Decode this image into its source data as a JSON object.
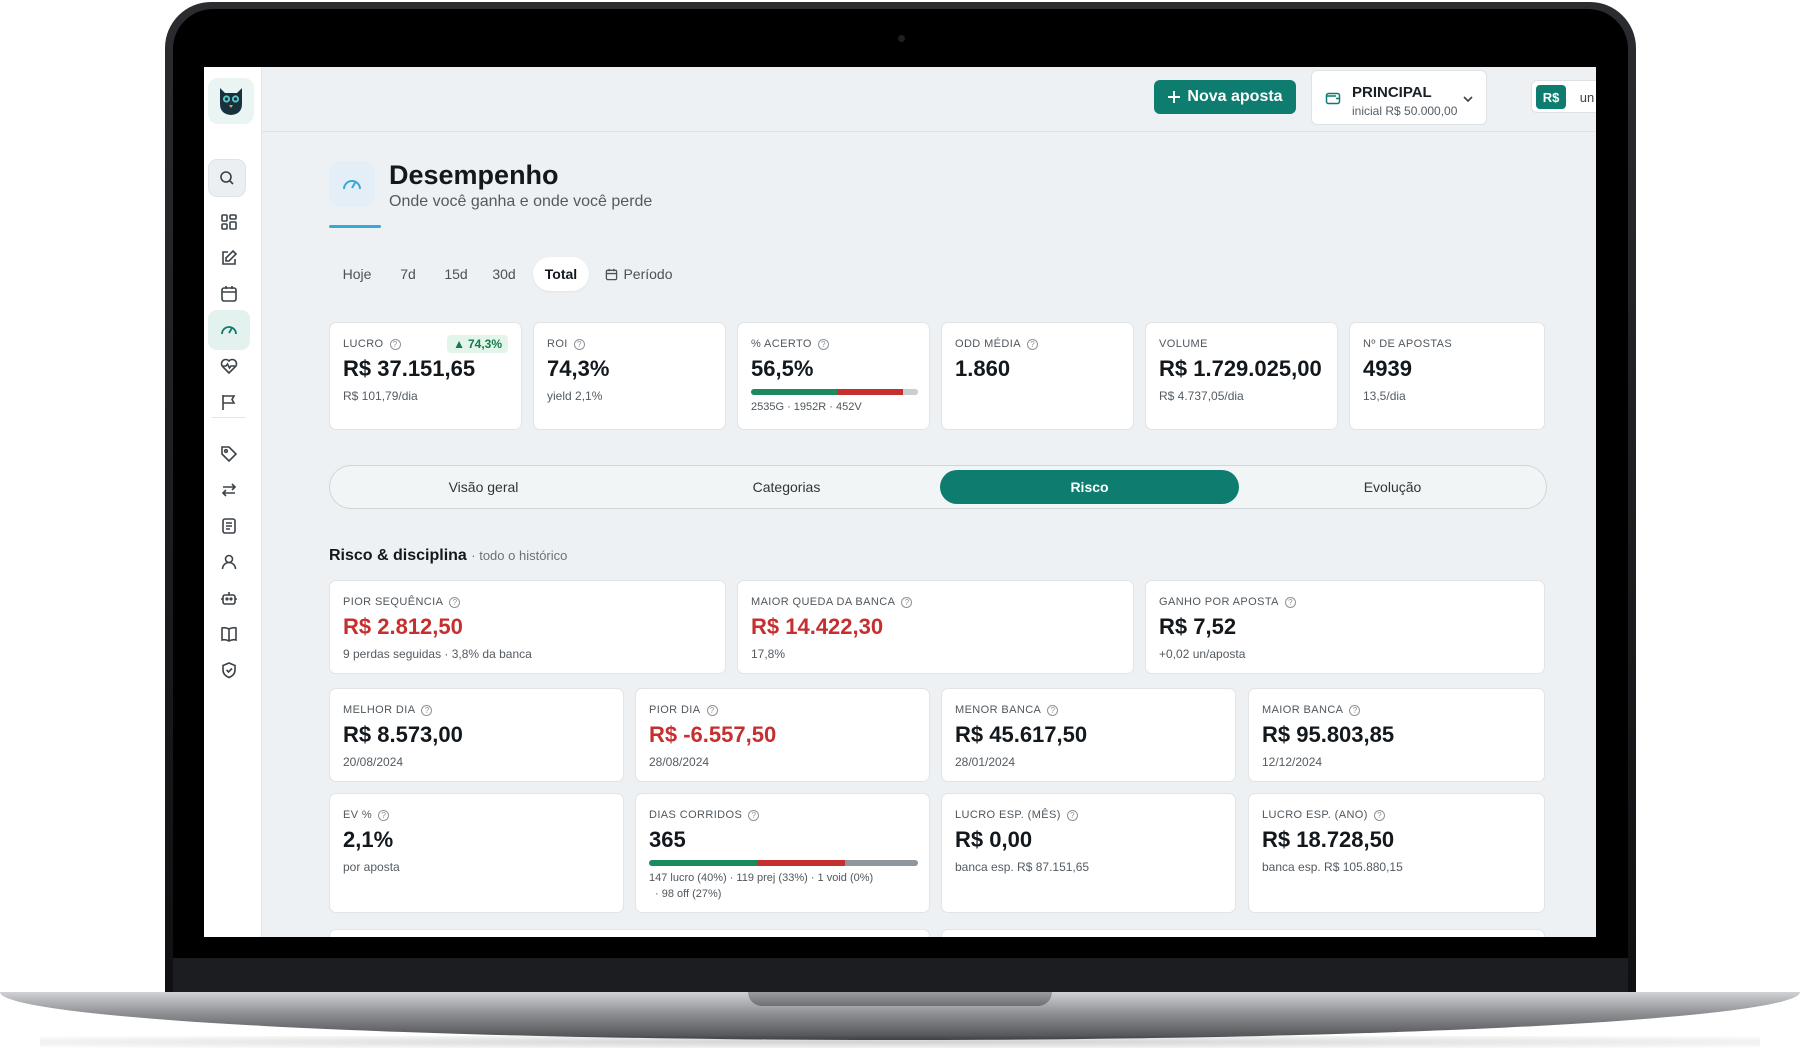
{
  "header": {
    "new_bet_label": "Nova aposta",
    "bank": {
      "name": "PRINCIPAL",
      "sub": "inicial R$ 50.000,00"
    },
    "currency": {
      "rs": "R$",
      "un": "un"
    }
  },
  "page": {
    "title": "Desempenho",
    "subtitle": "Onde você ganha e onde você perde"
  },
  "periods": [
    "Hoje",
    "7d",
    "15d",
    "30d",
    "Total",
    "Período"
  ],
  "kpis": {
    "lucro": {
      "label": "LUCRO",
      "value": "R$ 37.151,65",
      "sub": "R$ 101,79/dia",
      "badge": "74,3%"
    },
    "roi": {
      "label": "ROI",
      "value": "74,3%",
      "sub": "yield 2,1%"
    },
    "acerto": {
      "label": "% ACERTO",
      "value": "56,5%",
      "sub": "2535G · 1952R · 452V",
      "green_pct": 51.3,
      "red_pct": 39.5,
      "void_pct": 9.2
    },
    "odd": {
      "label": "ODD MÉDIA",
      "value": "1.860"
    },
    "volume": {
      "label": "VOLUME",
      "value": "R$ 1.729.025,00",
      "sub": "R$ 4.737,05/dia"
    },
    "apostas": {
      "label": "Nº DE APOSTAS",
      "value": "4939",
      "sub": "13,5/dia"
    }
  },
  "tabs": [
    "Visão geral",
    "Categorias",
    "Risco",
    "Evolução"
  ],
  "section": {
    "title": "Risco & disciplina",
    "suffix": "· todo o histórico"
  },
  "risk": {
    "pior_sequencia": {
      "label": "PIOR SEQUÊNCIA",
      "value": "R$ 2.812,50",
      "sub": "9 perdas seguidas · 3,8% da banca"
    },
    "maior_queda": {
      "label": "MAIOR QUEDA DA BANCA",
      "value": "R$ 14.422,30",
      "sub": "17,8%"
    },
    "ganho_aposta": {
      "label": "GANHO POR APOSTA",
      "value": "R$ 7,52",
      "sub": "+0,02 un/aposta"
    },
    "melhor_dia": {
      "label": "MELHOR DIA",
      "value": "R$ 8.573,00",
      "sub": "20/08/2024"
    },
    "pior_dia": {
      "label": "PIOR DIA",
      "value": "R$ -6.557,50",
      "sub": "28/08/2024"
    },
    "menor_banca": {
      "label": "MENOR BANCA",
      "value": "R$ 45.617,50",
      "sub": "28/01/2024"
    },
    "maior_banca": {
      "label": "MAIOR BANCA",
      "value": "R$ 95.803,85",
      "sub": "12/12/2024"
    },
    "ev": {
      "label": "EV %",
      "value": "2,1%",
      "sub": "por aposta"
    },
    "dias": {
      "label": "DIAS CORRIDOS",
      "value": "365",
      "note1": "147 lucro (40%) · 119 prej (33%) · 1 void (0%)",
      "note2": "· 98 off (27%)",
      "lucro_pct": 40,
      "prej_pct": 33,
      "void_pct": 0,
      "off_pct": 27
    },
    "lucro_mes": {
      "label": "LUCRO ESP. (MÊS)",
      "value": "R$ 0,00",
      "sub": "banca esp. R$ 87.151,65"
    },
    "lucro_ano": {
      "label": "LUCRO ESP. (ANO)",
      "value": "R$ 18.728,50",
      "sub": "banca esp. R$ 105.880,15"
    }
  },
  "colors": {
    "accent": "#0e7c6f",
    "negative": "#c62f2f",
    "positive": "#1d8a5e"
  },
  "icons": [
    "logo-icon",
    "search-icon",
    "dashboard-icon",
    "edit-icon",
    "calendar-icon",
    "gauge-icon",
    "heart-pulse-icon",
    "flag-icon",
    "tag-icon",
    "transfer-icon",
    "report-icon",
    "user-icon",
    "bot-icon",
    "book-icon",
    "shield-icon",
    "wallet-icon",
    "chevron-down-icon",
    "sun-icon",
    "plus-icon",
    "help-icon"
  ]
}
